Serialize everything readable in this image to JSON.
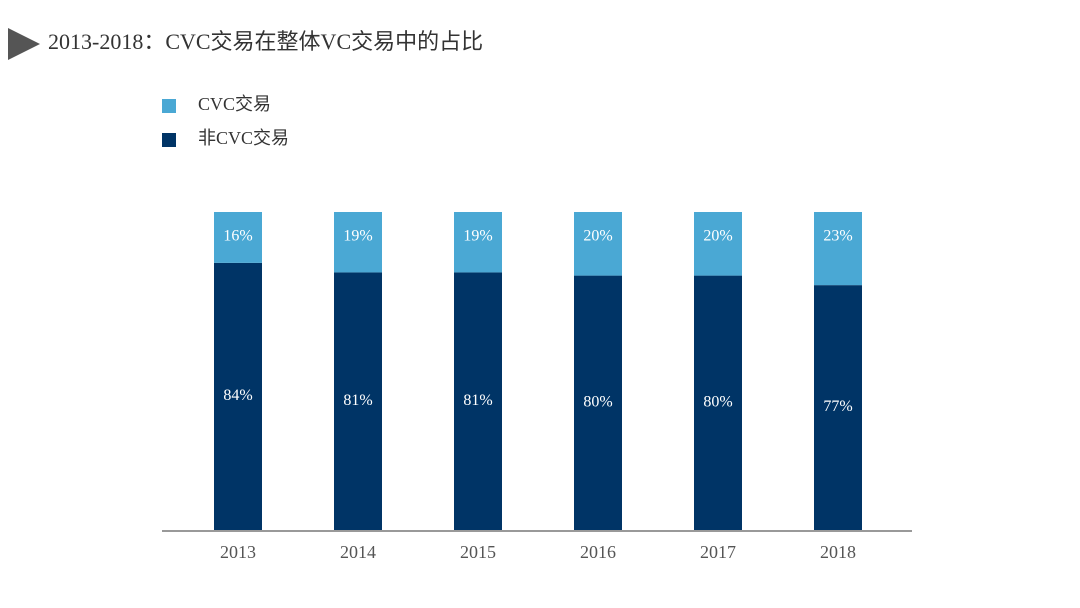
{
  "chart_data": {
    "type": "stacked-bar",
    "title": "2013-2018：CVC交易在整体VC交易中的占比",
    "categories": [
      "2013",
      "2014",
      "2015",
      "2016",
      "2017",
      "2018"
    ],
    "series": [
      {
        "name": "CVC交易",
        "color": "#4aa8d4",
        "values": [
          16,
          19,
          19,
          20,
          20,
          23
        ],
        "value_labels": [
          "16%",
          "19%",
          "19%",
          "20%",
          "20%",
          "23%"
        ]
      },
      {
        "name": "非CVC交易",
        "color": "#003466",
        "values": [
          84,
          81,
          81,
          80,
          80,
          77
        ],
        "value_labels": [
          "84%",
          "81%",
          "81%",
          "80%",
          "80%",
          "77%"
        ]
      }
    ],
    "ylim": [
      0,
      100
    ],
    "legend": "top-left"
  }
}
